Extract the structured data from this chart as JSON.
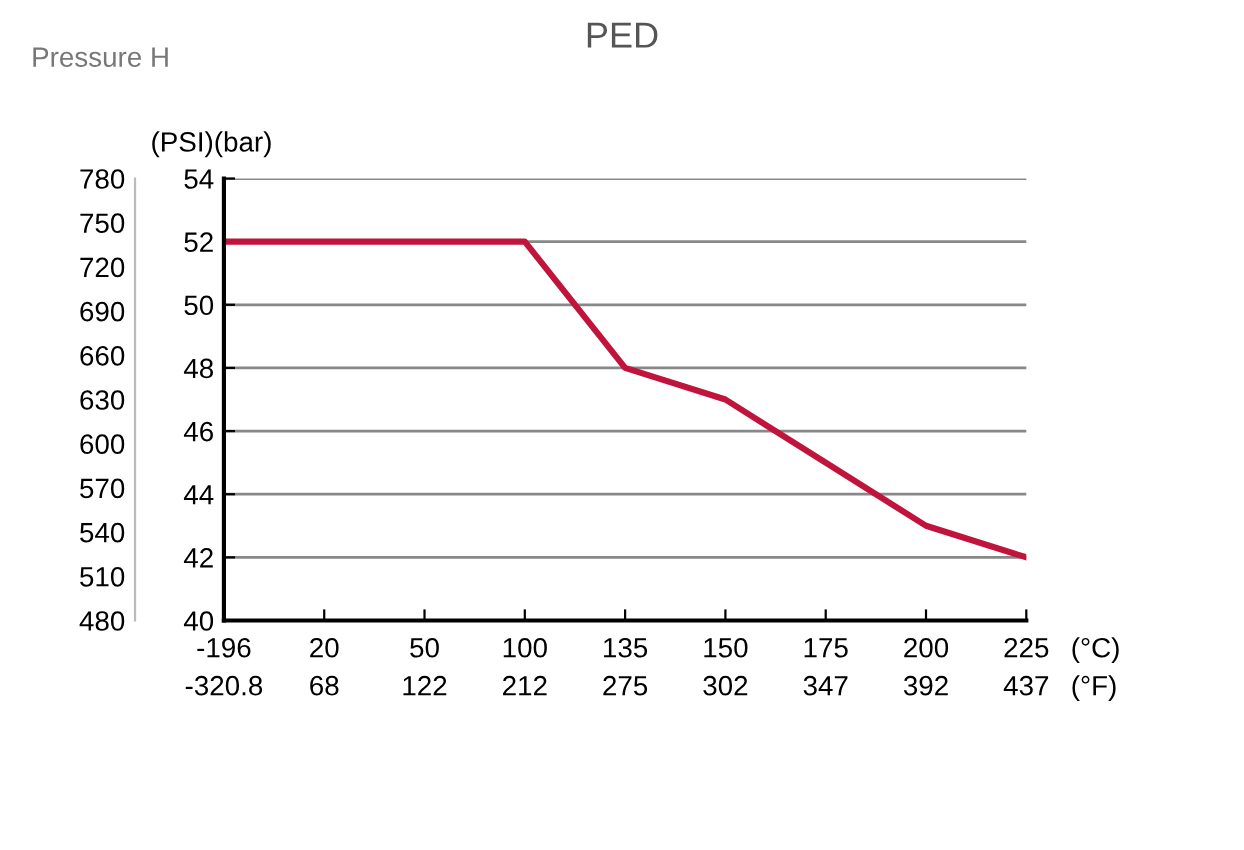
{
  "chart_data": {
    "type": "line",
    "title": "PED",
    "subtitle": "Pressure H",
    "ylabel": "(bar)",
    "y2label": "(PSI)",
    "categories": [
      "-196\n-320.8",
      "20\n68",
      "50\n122",
      "100\n212",
      "135\n275",
      "150\n302",
      "175\n347",
      "200\n392",
      "225\n437"
    ],
    "series": [
      {
        "color": "#c0143c",
        "values": [
          52,
          52,
          52,
          52,
          48,
          47,
          45,
          43,
          42
        ]
      }
    ],
    "ylim": [
      40,
      54
    ],
    "yticks": [
      40,
      42,
      44,
      46,
      48,
      50,
      52,
      54
    ],
    "y2lim": [
      480,
      780
    ],
    "y2ticks": [
      480,
      510,
      540,
      570,
      600,
      630,
      660,
      690,
      720,
      750,
      780
    ],
    "annotations": [
      "(°C)\n(°F)"
    ],
    "grid": "y",
    "legend": false,
    "marker": "none",
    "line_style": "solid"
  }
}
